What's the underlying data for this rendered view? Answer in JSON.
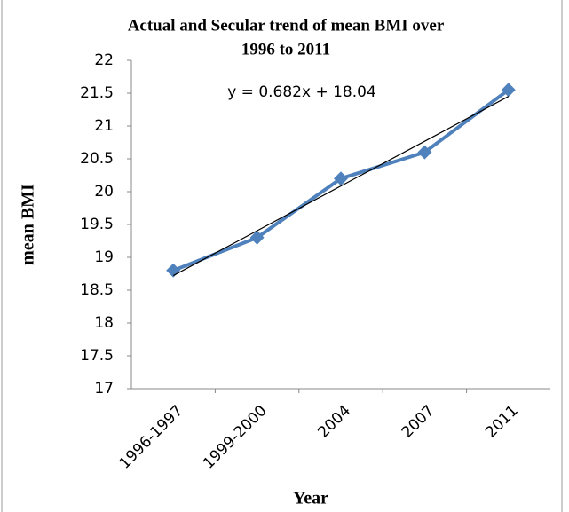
{
  "chart_data": {
    "type": "line",
    "title": [
      "Actual and Secular trend of mean BMI over",
      "1996 to 2011"
    ],
    "x_label": "Year",
    "y_label": "mean BMI",
    "categories": [
      "1996-1997",
      "1999-2000",
      "2004",
      "2007",
      "2011"
    ],
    "series": [
      {
        "color": "#4f81bd",
        "values": [
          18.8,
          19.3,
          20.2,
          20.6,
          21.55
        ]
      }
    ],
    "trendline": {
      "label": "y = 0.682x + 18.04",
      "color": "#000000",
      "values": [
        18.722,
        19.404,
        20.086,
        20.768,
        21.45
      ]
    },
    "ylim": [
      17,
      22
    ],
    "yticks": [
      17,
      17.5,
      18,
      18.5,
      19,
      19.5,
      20,
      20.5,
      21,
      21.5,
      22
    ],
    "grid": false
  }
}
